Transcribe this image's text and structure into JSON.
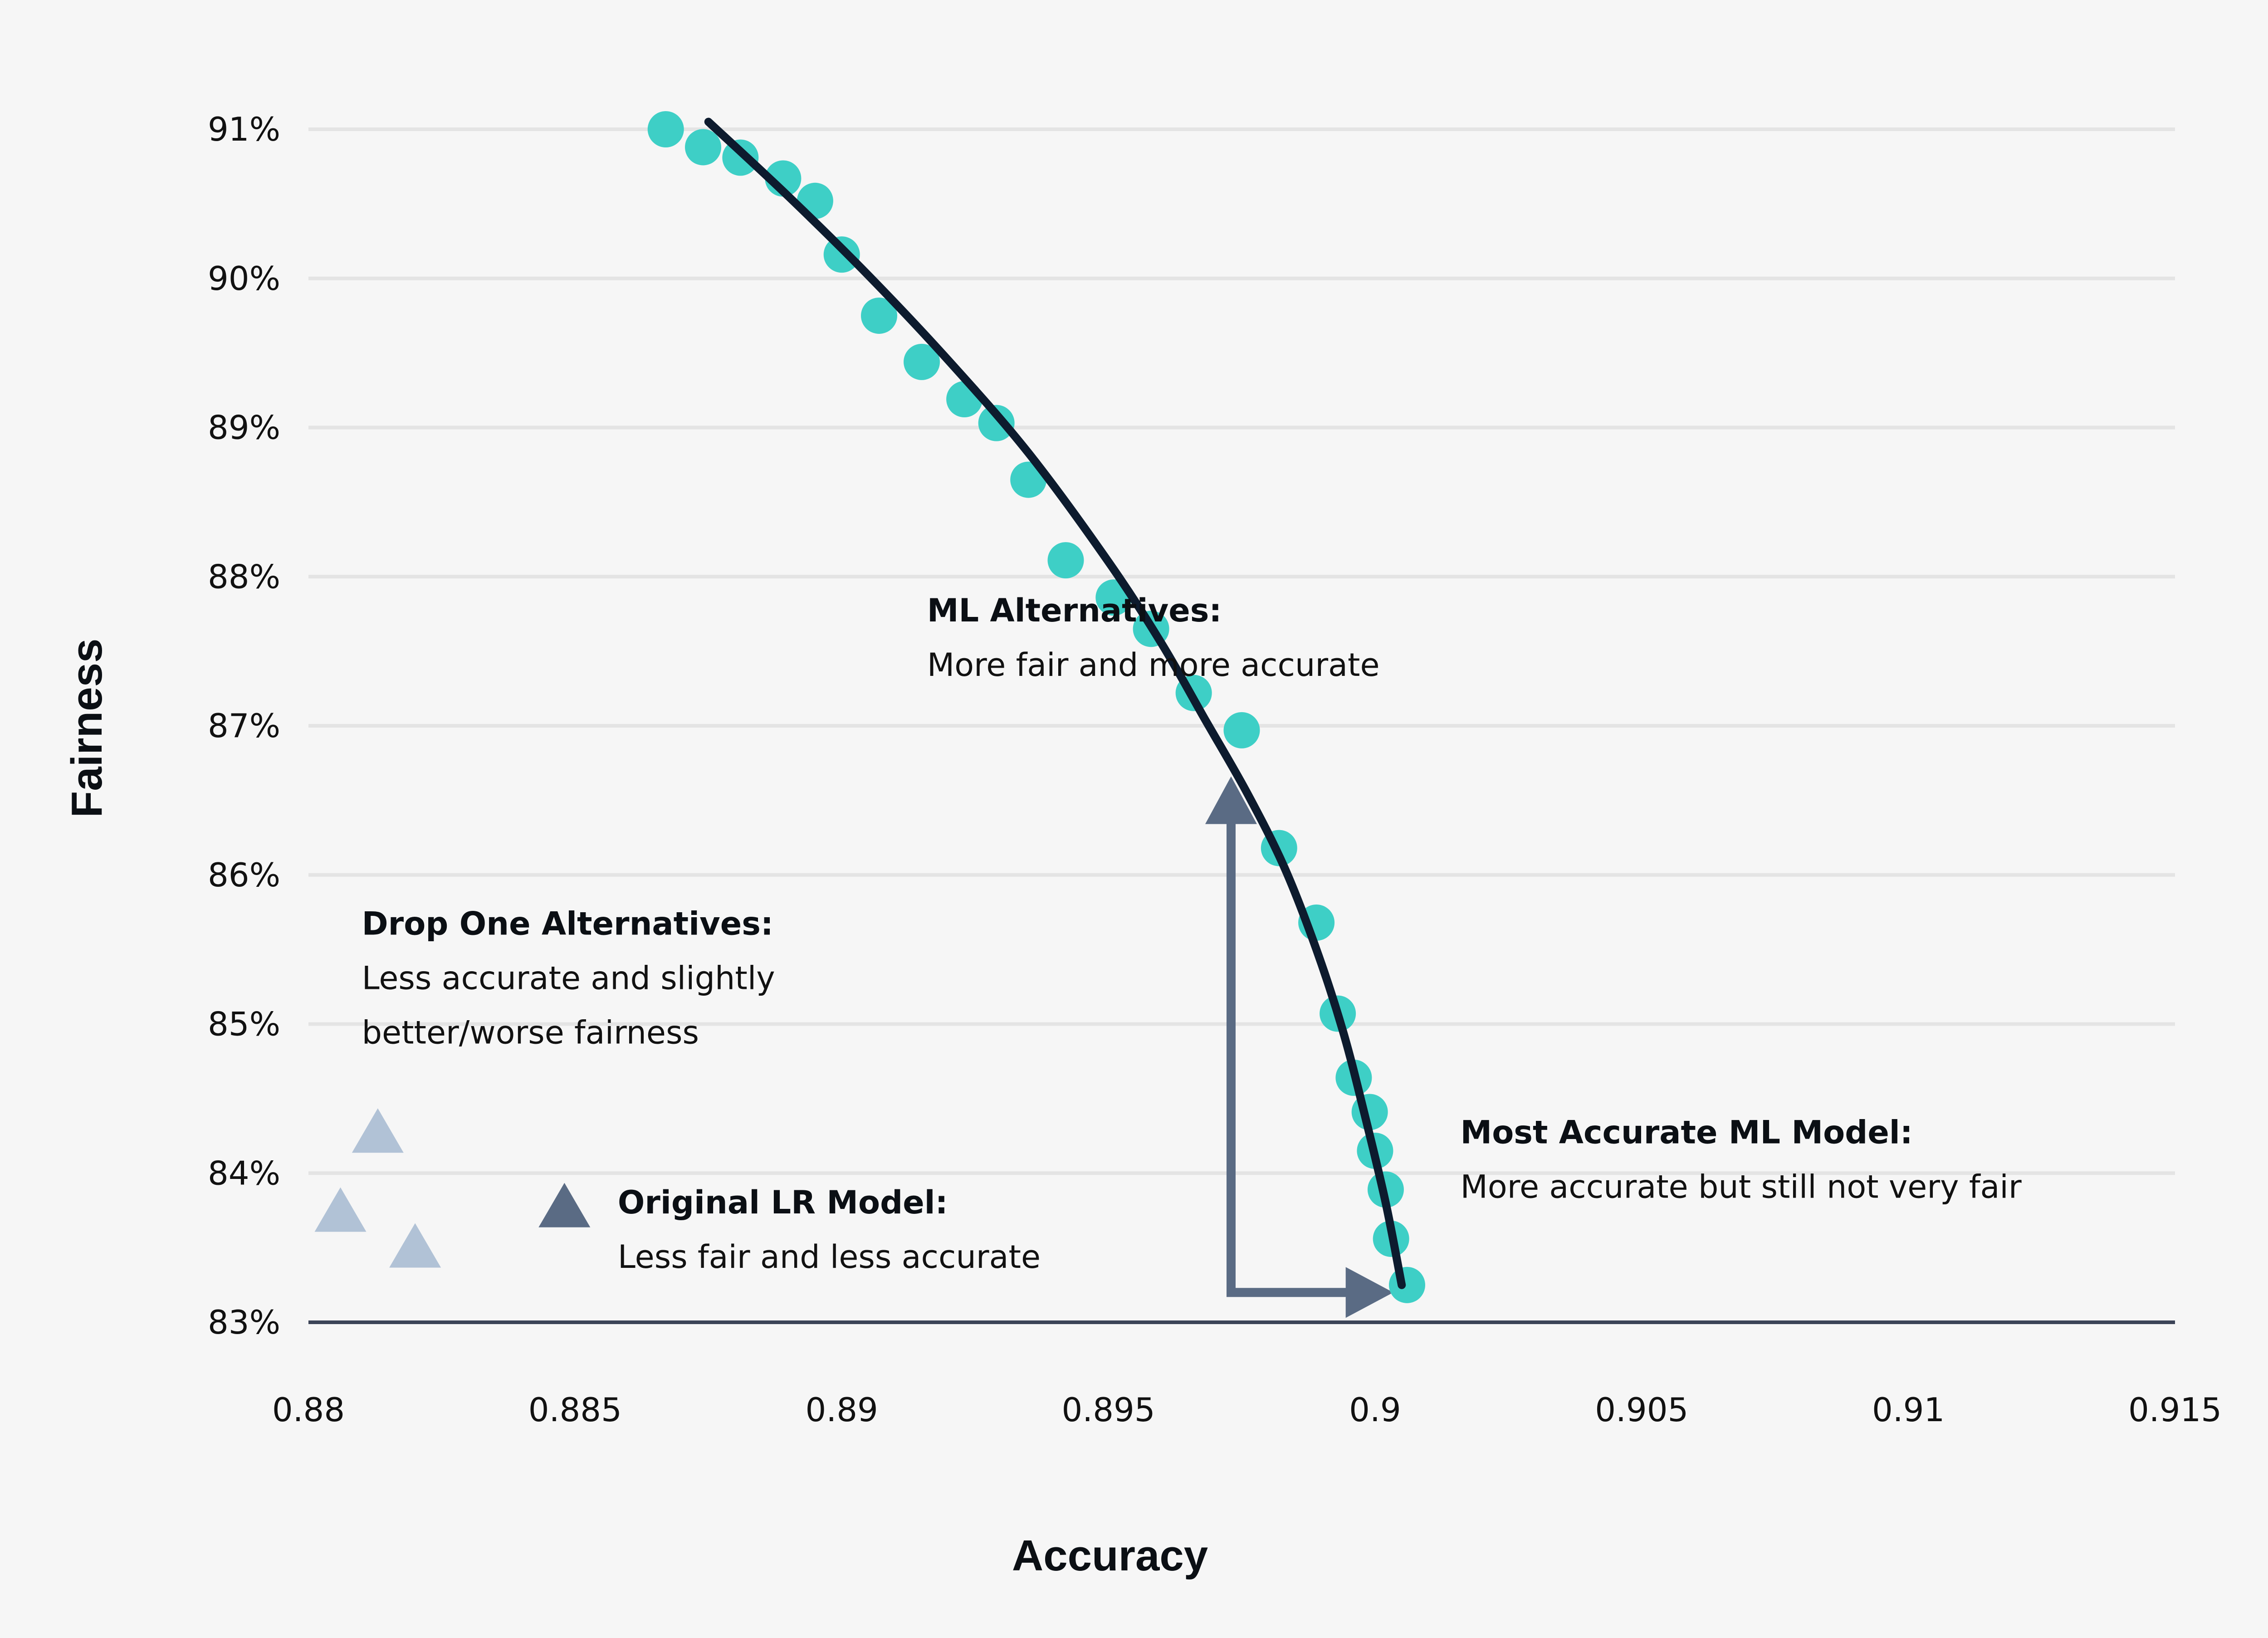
{
  "chart_data": {
    "type": "scatter",
    "title": "",
    "xlabel": "Accuracy",
    "ylabel": "Fairness",
    "xlim": [
      0.88,
      0.915
    ],
    "ylim": [
      83,
      91
    ],
    "x_ticks": [
      "0.88",
      "0.885",
      "0.89",
      "0.895",
      "0.9",
      "0.905",
      "0.91",
      "0.915"
    ],
    "y_ticks": [
      "83%",
      "84%",
      "85%",
      "86%",
      "87%",
      "88%",
      "89%",
      "90%",
      "91%"
    ],
    "grid": true,
    "colors": {
      "ml_points": "#3ecfc6",
      "frontier_line": "#0d1b2e",
      "drop_one": "#b1c2d6",
      "original_lr": "#5a6b84",
      "arrow": "#5a6b84",
      "grid": "#e4e4e4",
      "baseline": "#3c4457"
    },
    "series": [
      {
        "marker": "circle",
        "x": [
          0.8867,
          0.8874,
          0.8881,
          0.8889,
          0.8895,
          0.89,
          0.8907,
          0.8915,
          0.8923,
          0.8929,
          0.8935,
          0.8942,
          0.8951,
          0.8958,
          0.8966,
          0.8975,
          0.8982,
          0.8989,
          0.8993,
          0.8996,
          0.8999,
          0.9,
          0.9002,
          0.9003,
          0.9006
        ],
        "y": [
          91.0,
          90.88,
          90.81,
          90.67,
          90.52,
          90.16,
          89.75,
          89.44,
          89.19,
          89.03,
          88.65,
          88.11,
          87.86,
          87.65,
          87.22,
          86.97,
          86.18,
          85.68,
          85.07,
          84.64,
          84.41,
          84.15,
          83.89,
          83.56,
          83.25
        ]
      },
      {
        "marker": "line",
        "x": [
          0.8875,
          0.889,
          0.8905,
          0.892,
          0.8935,
          0.895,
          0.896,
          0.8968,
          0.8976,
          0.8983,
          0.8989,
          0.8994,
          0.8998,
          0.9002,
          0.9005
        ],
        "y": [
          91.05,
          90.55,
          90.02,
          89.45,
          88.83,
          88.1,
          87.55,
          87.05,
          86.55,
          86.05,
          85.5,
          84.95,
          84.4,
          83.8,
          83.25
        ]
      },
      {
        "marker": "triangle",
        "x": [
          0.8813,
          0.8806,
          0.882
        ],
        "y": [
          84.25,
          83.72,
          83.48
        ]
      },
      {
        "marker": "triangle",
        "x": [
          0.8848
        ],
        "y": [
          83.75
        ]
      }
    ],
    "arrow": {
      "vertical": {
        "x": 0.8973,
        "y_from": 83.2,
        "y_to": 86.63
      },
      "horizontal": {
        "y": 83.2,
        "x_from": 0.8973,
        "x_to": 0.9003
      }
    },
    "annotations": [
      {
        "title": "ML Alternatives:",
        "lines": [
          "More fair and more accurate"
        ],
        "x": 0.8916,
        "y": 87.7
      },
      {
        "title": "Drop One Alternatives:",
        "lines": [
          "Less accurate and slightly",
          "better/worse fairness"
        ],
        "x": 0.881,
        "y": 85.6
      },
      {
        "title": "Most Accurate ML Model:",
        "lines": [
          "More accurate but still not very fair"
        ],
        "x": 0.9016,
        "y": 84.2
      },
      {
        "title": "Original LR Model:",
        "lines": [
          "Less fair and less accurate"
        ],
        "x": 0.8858,
        "y": 83.73
      }
    ]
  }
}
